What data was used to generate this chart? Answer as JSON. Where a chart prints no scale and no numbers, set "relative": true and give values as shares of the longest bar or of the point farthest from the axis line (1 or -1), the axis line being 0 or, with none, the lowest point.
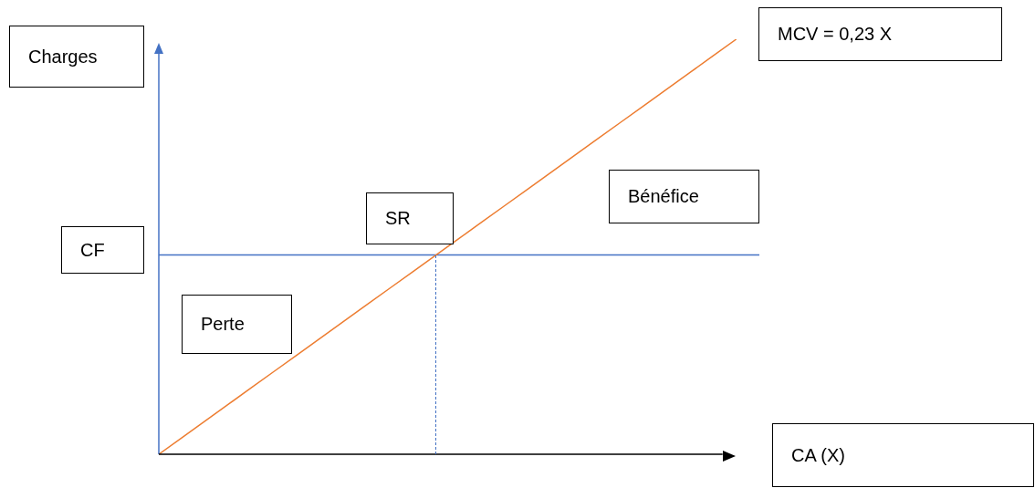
{
  "chart_data": {
    "type": "line",
    "relative": true,
    "xlabel": "CA (X)",
    "ylabel": "Charges",
    "annotations": [
      "CF",
      "SR",
      "Bénéfice",
      "Perte",
      "MCV = 0,23 X"
    ],
    "categories": [
      null,
      null,
      null,
      null,
      null,
      null,
      null,
      null,
      null,
      null,
      null,
      null,
      null,
      null,
      null,
      null,
      null,
      null,
      null,
      null,
      null,
      null,
      null,
      null,
      null,
      null,
      null
    ],
    "series": [
      {
        "color": "#ed7d31",
        "values": [
          0,
          0.04,
          0.08,
          0.12,
          0.16,
          0.2,
          0.24,
          0.28,
          0.32,
          0.36,
          0.4,
          0.44,
          0.48,
          0.52,
          0.56,
          0.6,
          0.64,
          0.68,
          0.72,
          0.76,
          0.8,
          0.84,
          0.88,
          0.92,
          0.96,
          1,
          null
        ]
      },
      {
        "color": "#4472c4",
        "values": [
          0.48,
          0.48,
          0.48,
          0.48,
          0.48,
          0.48,
          0.48,
          0.48,
          0.48,
          0.48,
          0.48,
          0.48,
          0.48,
          0.48,
          0.48,
          0.48,
          0.48,
          0.48,
          0.48,
          0.48,
          0.48,
          0.48,
          0.48,
          0.48,
          0.48,
          0.48,
          0.48
        ]
      }
    ],
    "grid": false,
    "legend": false,
    "marker": "none"
  }
}
